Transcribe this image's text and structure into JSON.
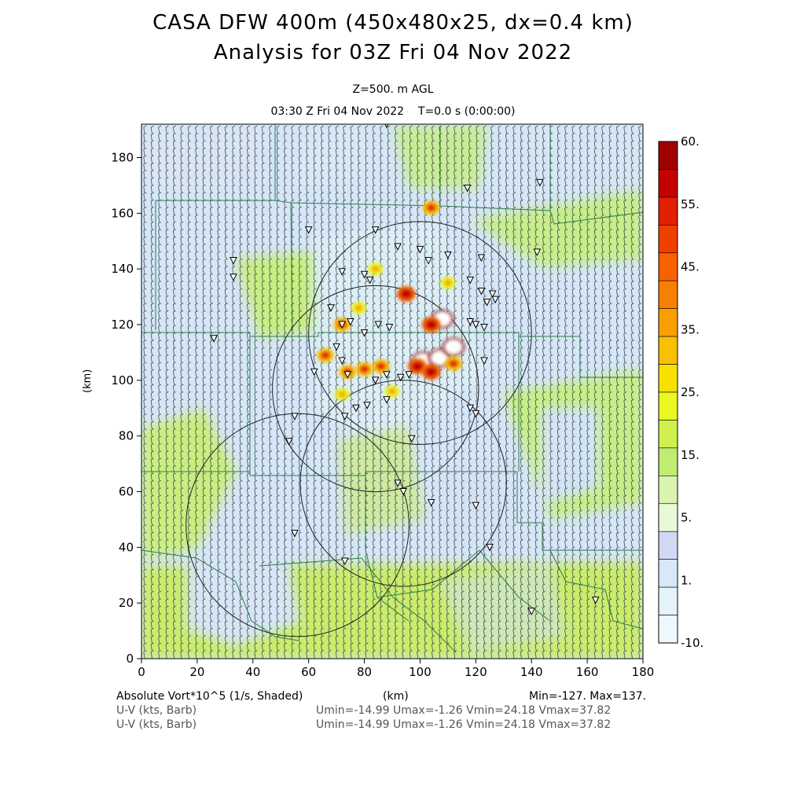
{
  "title_line1": "CASA DFW 400m (450x480x25, dx=0.4 km)",
  "title_line2": "Analysis for 03Z Fri 04 Nov 2022",
  "level_label": "Z=500. m AGL",
  "time_label": "03:30 Z Fri 04 Nov 2022    T=0.0 s (0:00:00)",
  "axes": {
    "x_label": "(km)",
    "y_label": "(km)",
    "x_range": [
      0,
      180
    ],
    "y_range": [
      0,
      192
    ],
    "x_ticks": [
      "0",
      "20",
      "40",
      "60",
      "80",
      "100",
      "120",
      "140",
      "160",
      "180"
    ],
    "y_ticks": [
      "0",
      "20",
      "40",
      "60",
      "80",
      "100",
      "120",
      "140",
      "160",
      "180"
    ]
  },
  "colorbar": {
    "labels": [
      "60.",
      "55.",
      "45.",
      "35.",
      "25.",
      "15.",
      "5.",
      "1.",
      "-10."
    ],
    "colors": [
      "#a00000",
      "#c40000",
      "#e02000",
      "#f04000",
      "#f86000",
      "#f88000",
      "#f8a000",
      "#f8c000",
      "#f8e000",
      "#e8f820",
      "#d0f050",
      "#c0ec70",
      "#d8f4b0",
      "#e8f8d8",
      "#d0d8f4",
      "#d8e8f8",
      "#e4f2fa",
      "#eef8fc"
    ]
  },
  "footer": {
    "field_label": "Absolute Vort*10^5 (1/s, Shaded)",
    "x_unit": "(km)",
    "minmax": "Min=-127. Max=137.",
    "barb_label_1": "U-V (kts, Barb)",
    "barb_stats_1": "Umin=-14.99 Umax=-1.26 Vmin=24.18 Vmax=37.82",
    "barb_label_2": "U-V (kts, Barb)",
    "barb_stats_2": "Umin=-14.99 Umax=-1.26 Vmin=24.18 Vmax=37.82"
  },
  "map_data": {
    "radar_rings": [
      {
        "cx": 100,
        "cy": 117,
        "r": 40
      },
      {
        "cx": 84,
        "cy": 97,
        "r": 37
      },
      {
        "cx": 56,
        "cy": 48,
        "r": 40
      },
      {
        "cx": 94,
        "cy": 63,
        "r": 37
      }
    ],
    "storm_cells": [
      {
        "x": 101,
        "y": 107,
        "level": "white"
      },
      {
        "x": 107,
        "y": 108,
        "level": "white"
      },
      {
        "x": 112,
        "y": 112,
        "level": "white"
      },
      {
        "x": 99,
        "y": 105,
        "level": "high"
      },
      {
        "x": 104,
        "y": 103,
        "level": "high"
      },
      {
        "x": 108,
        "y": 122,
        "level": "white"
      },
      {
        "x": 104,
        "y": 120,
        "level": "high"
      },
      {
        "x": 95,
        "y": 131,
        "level": "high"
      },
      {
        "x": 72,
        "y": 120,
        "level": "mid"
      },
      {
        "x": 66,
        "y": 109,
        "level": "mid"
      },
      {
        "x": 74,
        "y": 103,
        "level": "mid"
      },
      {
        "x": 80,
        "y": 104,
        "level": "mid"
      },
      {
        "x": 86,
        "y": 105,
        "level": "mid"
      },
      {
        "x": 84,
        "y": 140,
        "level": "low"
      },
      {
        "x": 104,
        "y": 162,
        "level": "mid"
      },
      {
        "x": 112,
        "y": 106,
        "level": "mid"
      },
      {
        "x": 78,
        "y": 126,
        "level": "low"
      },
      {
        "x": 90,
        "y": 96,
        "level": "low"
      },
      {
        "x": 72,
        "y": 95,
        "level": "low"
      },
      {
        "x": 110,
        "y": 135,
        "level": "low"
      }
    ],
    "station_markers": [
      [
        88,
        192
      ],
      [
        117,
        169
      ],
      [
        143,
        171
      ],
      [
        60,
        154
      ],
      [
        84,
        154
      ],
      [
        92,
        148
      ],
      [
        100,
        147
      ],
      [
        103,
        143
      ],
      [
        110,
        145
      ],
      [
        122,
        144
      ],
      [
        142,
        146
      ],
      [
        33,
        143
      ],
      [
        33,
        137
      ],
      [
        72,
        139
      ],
      [
        80,
        138
      ],
      [
        82,
        136
      ],
      [
        118,
        136
      ],
      [
        122,
        132
      ],
      [
        126,
        131
      ],
      [
        127,
        129
      ],
      [
        124,
        128
      ],
      [
        118,
        121
      ],
      [
        120,
        120
      ],
      [
        123,
        119
      ],
      [
        72,
        120
      ],
      [
        75,
        121
      ],
      [
        85,
        120
      ],
      [
        89,
        119
      ],
      [
        80,
        117
      ],
      [
        68,
        126
      ],
      [
        70,
        112
      ],
      [
        72,
        107
      ],
      [
        74,
        102
      ],
      [
        88,
        102
      ],
      [
        93,
        101
      ],
      [
        96,
        102
      ],
      [
        84,
        100
      ],
      [
        26,
        115
      ],
      [
        62,
        103
      ],
      [
        77,
        90
      ],
      [
        81,
        91
      ],
      [
        55,
        87
      ],
      [
        73,
        87
      ],
      [
        88,
        93
      ],
      [
        53,
        78
      ],
      [
        97,
        79
      ],
      [
        118,
        90
      ],
      [
        123,
        107
      ],
      [
        120,
        88
      ],
      [
        92,
        63
      ],
      [
        94,
        60
      ],
      [
        104,
        56
      ],
      [
        120,
        55
      ],
      [
        125,
        40
      ],
      [
        55,
        45
      ],
      [
        73,
        35
      ],
      [
        140,
        17
      ],
      [
        163,
        21
      ]
    ]
  }
}
